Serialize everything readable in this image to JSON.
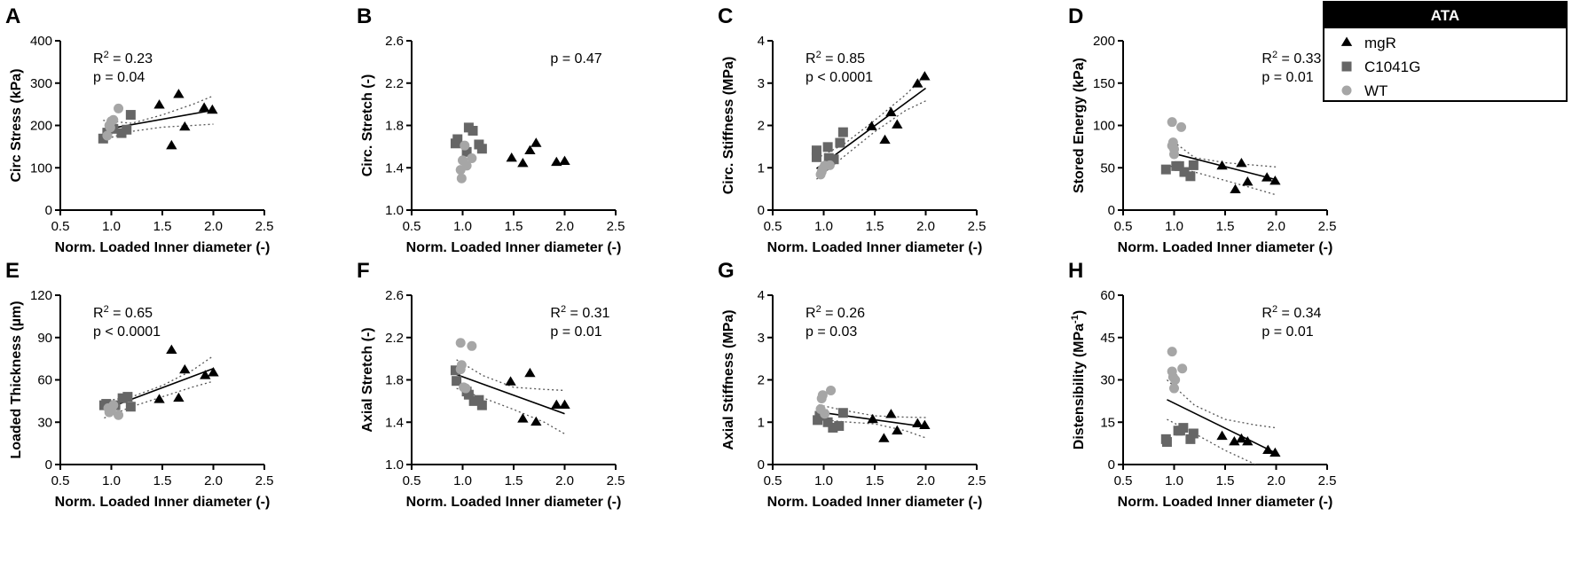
{
  "legend": {
    "title": "ATA",
    "entries": [
      {
        "name": "mgR",
        "marker": "triangle",
        "color": "#000000"
      },
      {
        "name": "C1041G",
        "marker": "square",
        "color": "#666666"
      },
      {
        "name": "WT",
        "marker": "circle",
        "color": "#a6a6a6"
      }
    ]
  },
  "chart_data": [
    {
      "panel": "A",
      "type": "scatter",
      "xlabel": "Norm. Loaded Inner diameter (-)",
      "ylabel": "Circ Stress (kPa)",
      "xlim": [
        0.5,
        2.5
      ],
      "ylim": [
        0,
        400
      ],
      "xticks": [
        "0.5",
        "1.0",
        "1.5",
        "2.0",
        "2.5"
      ],
      "yticks": [
        "0",
        "100",
        "200",
        "300",
        "400"
      ],
      "annotation": [
        "R2 = 0.23",
        "p = 0.04"
      ],
      "annotation_parts": [
        {
          "pre": "R",
          "sup": "2",
          "post": " = 0.23"
        },
        {
          "pre": "p = 0.04",
          "sup": "",
          "post": ""
        }
      ],
      "annotation_pos": "top-left",
      "fit": {
        "x": [
          0.92,
          2.0
        ],
        "y": [
          190,
          236
        ]
      },
      "ci_upper": {
        "x": [
          0.92,
          1.2,
          1.5,
          1.8,
          2.0
        ],
        "y": [
          212,
          205,
          225,
          250,
          270
        ]
      },
      "ci_lower": {
        "x": [
          0.92,
          1.2,
          1.5,
          1.8,
          2.0
        ],
        "y": [
          166,
          186,
          196,
          200,
          203
        ]
      },
      "series": [
        {
          "name": "mgR",
          "x": [
            1.47,
            1.59,
            1.66,
            1.72,
            1.91,
            1.99
          ],
          "y": [
            248,
            152,
            273,
            196,
            241,
            236
          ]
        },
        {
          "name": "C1041G",
          "x": [
            0.92,
            0.96,
            1.02,
            1.1,
            1.15,
            1.19
          ],
          "y": [
            169,
            183,
            192,
            182,
            190,
            225
          ]
        },
        {
          "name": "WT",
          "x": [
            0.96,
            0.98,
            1.0,
            1.02,
            1.07,
            0.99
          ],
          "y": [
            176,
            200,
            210,
            213,
            240,
            195
          ]
        }
      ]
    },
    {
      "panel": "B",
      "type": "scatter",
      "xlabel": "Norm. Loaded Inner diameter (-)",
      "ylabel": "Circ. Stretch  (-)",
      "xlim": [
        0.5,
        2.5
      ],
      "ylim": [
        1.0,
        2.6
      ],
      "xticks": [
        "0.5",
        "1.0",
        "1.5",
        "2.0",
        "2.5"
      ],
      "yticks": [
        "1.0",
        "1.4",
        "1.8",
        "2.2",
        "2.6"
      ],
      "annotation": [
        "p = 0.47"
      ],
      "annotation_parts": [
        {
          "pre": "p = 0.47",
          "sup": "",
          "post": ""
        }
      ],
      "annotation_pos": "top-right",
      "series": [
        {
          "name": "mgR",
          "x": [
            1.48,
            1.59,
            1.66,
            1.72,
            1.92,
            2.0
          ],
          "y": [
            1.49,
            1.44,
            1.56,
            1.63,
            1.45,
            1.46
          ]
        },
        {
          "name": "C1041G",
          "x": [
            0.93,
            0.95,
            1.04,
            1.06,
            1.1,
            1.16,
            1.19
          ],
          "y": [
            1.63,
            1.67,
            1.55,
            1.78,
            1.75,
            1.62,
            1.58
          ]
        },
        {
          "name": "WT",
          "x": [
            0.99,
            1.0,
            1.02,
            1.04,
            1.09,
            0.98
          ],
          "y": [
            1.3,
            1.47,
            1.61,
            1.42,
            1.49,
            1.38
          ]
        }
      ]
    },
    {
      "panel": "C",
      "type": "scatter",
      "xlabel": "Norm. Loaded Inner diameter (-)",
      "ylabel": "Circ. Stiffness (MPa)",
      "xlim": [
        0.5,
        2.5
      ],
      "ylim": [
        0,
        4
      ],
      "xticks": [
        "0.5",
        "1.0",
        "1.5",
        "2.0",
        "2.5"
      ],
      "yticks": [
        "0",
        "1",
        "2",
        "3",
        "4"
      ],
      "annotation": [
        "R2 = 0.85",
        "p < 0.0001"
      ],
      "annotation_parts": [
        {
          "pre": "R",
          "sup": "2",
          "post": " = 0.85"
        },
        {
          "pre": "p < 0.0001",
          "sup": "",
          "post": ""
        }
      ],
      "annotation_pos": "top-left",
      "fit": {
        "x": [
          0.93,
          2.0
        ],
        "y": [
          0.98,
          2.88
        ]
      },
      "ci_upper": {
        "x": [
          0.93,
          1.2,
          1.5,
          1.8,
          2.0
        ],
        "y": [
          1.22,
          1.56,
          2.12,
          2.72,
          3.18
        ]
      },
      "ci_lower": {
        "x": [
          0.93,
          1.2,
          1.5,
          1.8,
          2.0
        ],
        "y": [
          0.73,
          1.27,
          1.85,
          2.35,
          2.58
        ]
      },
      "series": [
        {
          "name": "mgR",
          "x": [
            1.47,
            1.6,
            1.66,
            1.72,
            1.92,
            1.99
          ],
          "y": [
            1.97,
            1.65,
            2.3,
            2.01,
            2.98,
            3.15
          ]
        },
        {
          "name": "C1041G",
          "x": [
            0.93,
            0.93,
            1.04,
            1.05,
            1.1,
            1.16,
            1.19
          ],
          "y": [
            1.25,
            1.41,
            1.49,
            1.23,
            1.2,
            1.59,
            1.84
          ]
        },
        {
          "name": "WT",
          "x": [
            0.97,
            0.99,
            1.01,
            1.06,
            0.98
          ],
          "y": [
            0.84,
            0.97,
            1.05,
            1.06,
            0.9
          ]
        }
      ]
    },
    {
      "panel": "D",
      "type": "scatter",
      "xlabel": "Norm. Loaded Inner diameter (-)",
      "ylabel": "Stored Energy (kPa)",
      "xlim": [
        0.5,
        2.5
      ],
      "ylim": [
        0,
        200
      ],
      "xticks": [
        "0.5",
        "1.0",
        "1.5",
        "2.0",
        "2.5"
      ],
      "yticks": [
        "0",
        "50",
        "100",
        "150",
        "200"
      ],
      "annotation": [
        "R2 = 0.33",
        "p = 0.01"
      ],
      "annotation_parts": [
        {
          "pre": "R",
          "sup": "2",
          "post": " = 0.33"
        },
        {
          "pre": "p = 0.01",
          "sup": "",
          "post": ""
        }
      ],
      "annotation_pos": "top-right",
      "fit": {
        "x": [
          0.96,
          2.0
        ],
        "y": [
          68,
          36
        ]
      },
      "ci_upper": {
        "x": [
          0.96,
          1.2,
          1.5,
          1.8,
          2.0
        ],
        "y": [
          84,
          62,
          56,
          53,
          51
        ]
      },
      "ci_lower": {
        "x": [
          0.96,
          1.2,
          1.5,
          1.8,
          2.0
        ],
        "y": [
          52,
          45,
          35,
          25,
          18
        ]
      },
      "series": [
        {
          "name": "mgR",
          "x": [
            1.47,
            1.6,
            1.66,
            1.72,
            1.91,
            1.99
          ],
          "y": [
            52,
            24,
            55,
            33,
            38,
            34
          ]
        },
        {
          "name": "C1041G",
          "x": [
            0.92,
            1.02,
            1.05,
            1.1,
            1.16,
            1.19
          ],
          "y": [
            48,
            52,
            52,
            45,
            40,
            53
          ]
        },
        {
          "name": "WT",
          "x": [
            0.98,
            0.99,
            1.0,
            1.0,
            1.07,
            0.98
          ],
          "y": [
            104,
            80,
            72,
            66,
            98,
            76
          ]
        }
      ]
    },
    {
      "panel": "E",
      "type": "scatter",
      "xlabel": "Norm. Loaded Inner diameter (-)",
      "ylabel": "Loaded Thickness (µm)",
      "xlim": [
        0.5,
        2.5
      ],
      "ylim": [
        0,
        120
      ],
      "xticks": [
        "0.5",
        "1.0",
        "1.5",
        "2.0",
        "2.5"
      ],
      "yticks": [
        "0",
        "30",
        "60",
        "90",
        "120"
      ],
      "annotation": [
        "R2 = 0.65",
        "p < 0.0001"
      ],
      "annotation_parts": [
        {
          "pre": "R",
          "sup": "2",
          "post": " = 0.65"
        },
        {
          "pre": "p < 0.0001",
          "sup": "",
          "post": ""
        }
      ],
      "annotation_pos": "top-left",
      "fit": {
        "x": [
          0.93,
          2.0
        ],
        "y": [
          39,
          68
        ]
      },
      "ci_upper": {
        "x": [
          0.93,
          1.2,
          1.5,
          1.8,
          2.0
        ],
        "y": [
          45,
          48,
          56,
          67,
          77
        ]
      },
      "ci_lower": {
        "x": [
          0.93,
          1.2,
          1.5,
          1.8,
          2.0
        ],
        "y": [
          33,
          41,
          48,
          55,
          59
        ]
      },
      "series": [
        {
          "name": "mgR",
          "x": [
            1.47,
            1.59,
            1.66,
            1.72,
            1.92,
            2.0
          ],
          "y": [
            46,
            81,
            47,
            67,
            63,
            65
          ]
        },
        {
          "name": "C1041G",
          "x": [
            0.93,
            0.95,
            1.04,
            1.11,
            1.16,
            1.19
          ],
          "y": [
            42,
            43,
            42,
            47,
            48,
            41
          ]
        },
        {
          "name": "WT",
          "x": [
            0.98,
            1.0,
            1.02,
            1.07,
            0.97
          ],
          "y": [
            37,
            39,
            42,
            35,
            40
          ]
        }
      ]
    },
    {
      "panel": "F",
      "type": "scatter",
      "xlabel": "Norm. Loaded Inner diameter (-)",
      "ylabel": "Axial Stretch  (-)",
      "xlim": [
        0.5,
        2.5
      ],
      "ylim": [
        1.0,
        2.6
      ],
      "xticks": [
        "0.5",
        "1.0",
        "1.5",
        "2.0",
        "2.5"
      ],
      "yticks": [
        "1.0",
        "1.4",
        "1.8",
        "2.2",
        "2.6"
      ],
      "annotation": [
        "R2 = 0.31",
        "p = 0.01"
      ],
      "annotation_parts": [
        {
          "pre": "R",
          "sup": "2",
          "post": " = 0.31"
        },
        {
          "pre": "p = 0.01",
          "sup": "",
          "post": ""
        }
      ],
      "annotation_pos": "top-right",
      "fit": {
        "x": [
          0.94,
          2.0
        ],
        "y": [
          1.85,
          1.48
        ]
      },
      "ci_upper": {
        "x": [
          0.94,
          1.2,
          1.5,
          1.8,
          2.0
        ],
        "y": [
          1.99,
          1.84,
          1.73,
          1.71,
          1.7
        ]
      },
      "ci_lower": {
        "x": [
          0.94,
          1.2,
          1.5,
          1.8,
          2.0
        ],
        "y": [
          1.72,
          1.63,
          1.52,
          1.4,
          1.29
        ]
      },
      "series": [
        {
          "name": "mgR",
          "x": [
            1.47,
            1.59,
            1.66,
            1.72,
            1.92,
            2.0
          ],
          "y": [
            1.78,
            1.43,
            1.86,
            1.4,
            1.56,
            1.56
          ]
        },
        {
          "name": "C1041G",
          "x": [
            0.93,
            0.94,
            1.04,
            1.06,
            1.11,
            1.16,
            1.19
          ],
          "y": [
            1.89,
            1.79,
            1.69,
            1.66,
            1.6,
            1.61,
            1.56
          ]
        },
        {
          "name": "WT",
          "x": [
            0.98,
            0.99,
            1.01,
            1.09,
            1.03,
            0.98
          ],
          "y": [
            2.15,
            1.94,
            1.73,
            2.12,
            1.72,
            1.9
          ]
        }
      ]
    },
    {
      "panel": "G",
      "type": "scatter",
      "xlabel": "Norm. Loaded Inner diameter (-)",
      "ylabel": "Axial Stiffness (MPa)",
      "xlim": [
        0.5,
        2.5
      ],
      "ylim": [
        0,
        4
      ],
      "xticks": [
        "0.5",
        "1.0",
        "1.5",
        "2.0",
        "2.5"
      ],
      "yticks": [
        "0",
        "1",
        "2",
        "3",
        "4"
      ],
      "annotation": [
        "R2 = 0.26",
        "p = 0.03"
      ],
      "annotation_parts": [
        {
          "pre": "R",
          "sup": "2",
          "post": " = 0.26"
        },
        {
          "pre": "p = 0.03",
          "sup": "",
          "post": ""
        }
      ],
      "annotation_pos": "top-left",
      "fit": {
        "x": [
          0.95,
          2.0
        ],
        "y": [
          1.24,
          0.89
        ]
      },
      "ci_upper": {
        "x": [
          0.95,
          1.2,
          1.5,
          1.8,
          2.0
        ],
        "y": [
          1.41,
          1.28,
          1.15,
          1.12,
          1.11
        ]
      },
      "ci_lower": {
        "x": [
          0.95,
          1.2,
          1.5,
          1.8,
          2.0
        ],
        "y": [
          1.07,
          1.01,
          0.96,
          0.8,
          0.63
        ]
      },
      "series": [
        {
          "name": "mgR",
          "x": [
            1.48,
            1.59,
            1.66,
            1.72,
            1.92,
            1.99
          ],
          "y": [
            1.06,
            0.61,
            1.18,
            0.79,
            0.96,
            0.92
          ]
        },
        {
          "name": "C1041G",
          "x": [
            0.94,
            0.96,
            1.04,
            1.09,
            1.15,
            1.19,
            0.99
          ],
          "y": [
            1.05,
            1.15,
            1.0,
            0.87,
            0.91,
            1.22,
            1.19
          ]
        },
        {
          "name": "WT",
          "x": [
            0.98,
            0.99,
            1.07,
            1.01,
            0.97
          ],
          "y": [
            1.56,
            1.64,
            1.75,
            1.2,
            1.31
          ]
        }
      ]
    },
    {
      "panel": "H",
      "type": "scatter",
      "xlabel": "Norm. Loaded Inner diameter (-)",
      "ylabel": "Distensibility (MPa-1)",
      "ylabel_parts": {
        "pre": "Distensibility (MPa",
        "sup": "-1",
        "post": ")"
      },
      "xlim": [
        0.5,
        2.5
      ],
      "ylim": [
        0,
        60
      ],
      "xticks": [
        "0.5",
        "1.0",
        "1.5",
        "2.0",
        "2.5"
      ],
      "yticks": [
        "0",
        "15",
        "30",
        "45",
        "60"
      ],
      "annotation": [
        "R2 = 0.34",
        "p = 0.01"
      ],
      "annotation_parts": [
        {
          "pre": "R",
          "sup": "2",
          "post": " = 0.34"
        },
        {
          "pre": "p = 0.01",
          "sup": "",
          "post": ""
        }
      ],
      "annotation_pos": "top-right",
      "fit": {
        "x": [
          0.93,
          2.0
        ],
        "y": [
          23,
          4
        ]
      },
      "ci_upper": {
        "x": [
          0.93,
          1.2,
          1.5,
          1.8,
          2.0
        ],
        "y": [
          30,
          21,
          16,
          14,
          13
        ]
      },
      "ci_lower": {
        "x": [
          0.93,
          1.2,
          1.5,
          1.8,
          2.0
        ],
        "y": [
          16,
          11,
          5,
          0,
          -2
        ]
      },
      "series": [
        {
          "name": "mgR",
          "x": [
            1.47,
            1.59,
            1.66,
            1.72,
            1.92,
            1.99
          ],
          "y": [
            10,
            8,
            9,
            8,
            5,
            4
          ]
        },
        {
          "name": "C1041G",
          "x": [
            0.92,
            0.93,
            1.04,
            1.09,
            1.16,
            1.19,
            1.06
          ],
          "y": [
            9,
            8,
            12,
            13,
            9,
            11,
            12
          ]
        },
        {
          "name": "WT",
          "x": [
            0.98,
            0.98,
            0.99,
            1.0,
            1.08,
            1.01
          ],
          "y": [
            40,
            33,
            31,
            27,
            34,
            30
          ]
        }
      ]
    }
  ]
}
